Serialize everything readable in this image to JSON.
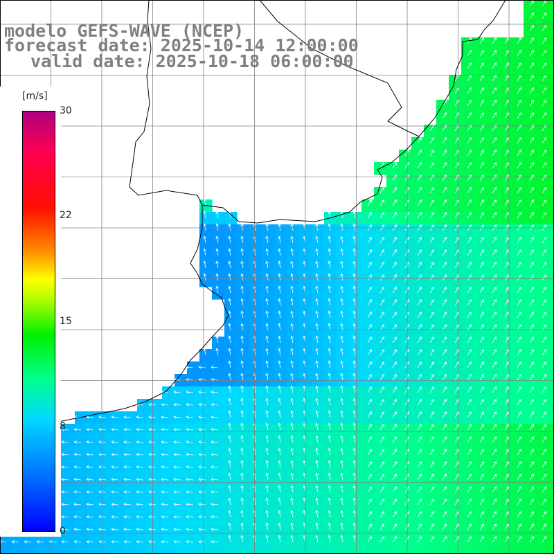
{
  "title": {
    "line1": "modelo GEFS-WAVE (NCEP)",
    "line2": "forecast date: 2025-10-14 12:00:00",
    "line3": "valid date: 2025-10-18 06:00:00"
  },
  "colorbar": {
    "unit": "[m/s]",
    "min": 0,
    "max": 30,
    "ticks": [
      "30",
      "22",
      "15",
      "8",
      "0"
    ],
    "colors": [
      "#0000ff",
      "#0070ff",
      "#00d8ff",
      "#00ff90",
      "#00f000",
      "#c0ff00",
      "#ffff00",
      "#ff8c00",
      "#ff1000",
      "#ff0050",
      "#b00080"
    ]
  },
  "map": {
    "field": "wind speed",
    "land_color": "#ffffff",
    "grid_color": "#808080",
    "coast_color": "#000000",
    "arrow_color": "#ffffff"
  }
}
